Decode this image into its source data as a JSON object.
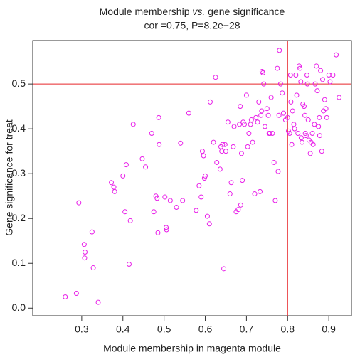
{
  "chart_data": {
    "type": "scatter",
    "title": [
      "Module membership ",
      "vs.",
      " gene significance"
    ],
    "subtitle": "cor =0.75, P=8.2e−28",
    "x_label": "Module membership in magenta module",
    "y_label": "Gene significance for treat",
    "color": "#e81ee8",
    "reference_color": "#e8262a",
    "vlines": [
      0.8
    ],
    "hlines": [
      0.5
    ],
    "xlim": [
      0.181,
      0.955
    ],
    "ylim": [
      -0.017,
      0.597
    ],
    "xticks": [
      0.3,
      0.4,
      0.5,
      0.6,
      0.7,
      0.8,
      0.9
    ],
    "yticks": [
      {
        "value": 0,
        "label": "0.0"
      },
      0.1,
      0.2,
      0.3,
      0.4,
      0.5
    ],
    "x": [
      0.26,
      0.287,
      0.293,
      0.306,
      0.308,
      0.307,
      0.325,
      0.328,
      0.34,
      0.372,
      0.378,
      0.38,
      0.4,
      0.405,
      0.408,
      0.415,
      0.418,
      0.425,
      0.447,
      0.455,
      0.47,
      0.475,
      0.48,
      0.483,
      0.485,
      0.488,
      0.487,
      0.502,
      0.505,
      0.506,
      0.515,
      0.53,
      0.54,
      0.545,
      0.56,
      0.578,
      0.585,
      0.59,
      0.593,
      0.596,
      0.598,
      0.6,
      0.605,
      0.61,
      0.612,
      0.62,
      0.625,
      0.628,
      0.636,
      0.638,
      0.64,
      0.642,
      0.645,
      0.648,
      0.65,
      0.655,
      0.66,
      0.663,
      0.668,
      0.67,
      0.675,
      0.68,
      0.683,
      0.685,
      0.686,
      0.688,
      0.69,
      0.692,
      0.695,
      0.7,
      0.703,
      0.706,
      0.71,
      0.712,
      0.715,
      0.72,
      0.723,
      0.727,
      0.73,
      0.733,
      0.735,
      0.737,
      0.738,
      0.74,
      0.742,
      0.745,
      0.75,
      0.753,
      0.755,
      0.757,
      0.76,
      0.763,
      0.767,
      0.77,
      0.775,
      0.777,
      0.779,
      0.78,
      0.783,
      0.787,
      0.79,
      0.795,
      0.8,
      0.802,
      0.805,
      0.807,
      0.808,
      0.81,
      0.812,
      0.815,
      0.817,
      0.82,
      0.822,
      0.825,
      0.828,
      0.83,
      0.832,
      0.833,
      0.835,
      0.837,
      0.84,
      0.842,
      0.843,
      0.845,
      0.847,
      0.848,
      0.85,
      0.852,
      0.855,
      0.857,
      0.86,
      0.862,
      0.865,
      0.867,
      0.87,
      0.872,
      0.875,
      0.877,
      0.878,
      0.88,
      0.883,
      0.885,
      0.887,
      0.89,
      0.893,
      0.895,
      0.9,
      0.903,
      0.91,
      0.918,
      0.925
    ],
    "values": [
      0.025,
      0.033,
      0.235,
      0.142,
      0.125,
      0.112,
      0.17,
      0.09,
      0.013,
      0.28,
      0.27,
      0.26,
      0.295,
      0.215,
      0.32,
      0.098,
      0.195,
      0.41,
      0.333,
      0.315,
      0.39,
      0.215,
      0.25,
      0.245,
      0.168,
      0.365,
      0.425,
      0.248,
      0.18,
      0.175,
      0.24,
      0.225,
      0.368,
      0.24,
      0.435,
      0.218,
      0.273,
      0.248,
      0.35,
      0.34,
      0.29,
      0.295,
      0.205,
      0.188,
      0.46,
      0.37,
      0.515,
      0.325,
      0.31,
      0.36,
      0.35,
      0.365,
      0.088,
      0.365,
      0.35,
      0.415,
      0.255,
      0.28,
      0.36,
      0.405,
      0.215,
      0.22,
      0.41,
      0.45,
      0.23,
      0.345,
      0.285,
      0.415,
      0.41,
      0.475,
      0.36,
      0.39,
      0.41,
      0.42,
      0.37,
      0.255,
      0.425,
      0.415,
      0.46,
      0.26,
      0.43,
      0.44,
      0.528,
      0.525,
      0.5,
      0.405,
      0.445,
      0.43,
      0.39,
      0.39,
      0.47,
      0.39,
      0.325,
      0.24,
      0.535,
      0.305,
      0.43,
      0.575,
      0.5,
      0.48,
      0.435,
      0.42,
      0.425,
      0.395,
      0.39,
      0.52,
      0.46,
      0.365,
      0.44,
      0.41,
      0.4,
      0.52,
      0.475,
      0.39,
      0.54,
      0.535,
      0.505,
      0.38,
      0.37,
      0.455,
      0.45,
      0.43,
      0.39,
      0.385,
      0.52,
      0.5,
      0.42,
      0.375,
      0.345,
      0.37,
      0.39,
      0.365,
      0.41,
      0.5,
      0.54,
      0.485,
      0.405,
      0.425,
      0.385,
      0.53,
      0.35,
      0.51,
      0.44,
      0.465,
      0.445,
      0.425,
      0.52,
      0.505,
      0.52,
      0.565,
      0.47
    ]
  }
}
